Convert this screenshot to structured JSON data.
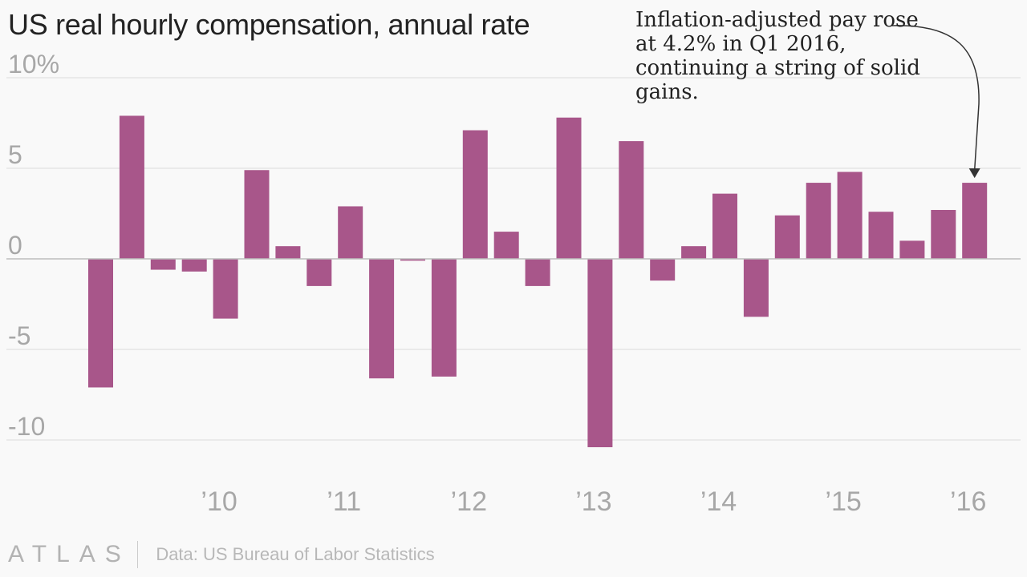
{
  "title": "US real hourly compensation, annual rate",
  "annotation": "Inflation-adjusted pay rose at 4.2% in Q1 2016, continuing a string of solid gains.",
  "footer": {
    "logo": "ATLAS",
    "source": "Data: US Bureau of Labor Statistics"
  },
  "colors": {
    "bar": "#a8568a",
    "grid": "#e2e2e2",
    "zero": "#bdbdbd",
    "tick": "#a7a7a7"
  },
  "chart_data": {
    "type": "bar",
    "title": "US real hourly compensation, annual rate",
    "ylim": [
      -10.5,
      10
    ],
    "yticks": [
      10,
      5,
      0,
      -5,
      -10
    ],
    "ytick_labels": [
      "10%",
      "5",
      "0",
      "-5",
      "-10"
    ],
    "grid": true,
    "categories": [
      "Q1 2009",
      "Q2 2009",
      "Q3 2009",
      "Q4 2009",
      "Q1 2010",
      "Q2 2010",
      "Q3 2010",
      "Q4 2010",
      "Q1 2011",
      "Q2 2011",
      "Q3 2011",
      "Q4 2011",
      "Q1 2012",
      "Q2 2012",
      "Q3 2012",
      "Q4 2012",
      "Q1 2013",
      "Q2 2013",
      "Q3 2013",
      "Q4 2013",
      "Q1 2014",
      "Q2 2014",
      "Q3 2014",
      "Q4 2014",
      "Q1 2015",
      "Q2 2015",
      "Q3 2015",
      "Q4 2015",
      "Q1 2016"
    ],
    "values": [
      -7.1,
      7.9,
      -0.6,
      -0.7,
      -3.3,
      4.9,
      0.7,
      -1.5,
      2.9,
      -6.6,
      -0.1,
      -6.5,
      7.1,
      1.5,
      -1.5,
      7.8,
      -10.4,
      6.5,
      -1.2,
      0.7,
      3.6,
      -3.2,
      2.4,
      4.2,
      4.8,
      2.6,
      1.0,
      2.7,
      4.2
    ],
    "xticks": [
      {
        "label": "’10",
        "at": "Q1 2010"
      },
      {
        "label": "’11",
        "at": "Q1 2011"
      },
      {
        "label": "’12",
        "at": "Q1 2012"
      },
      {
        "label": "’13",
        "at": "Q1 2013"
      },
      {
        "label": "’14",
        "at": "Q1 2014"
      },
      {
        "label": "’15",
        "at": "Q1 2015"
      },
      {
        "label": "’16",
        "at": "Q1 2016"
      }
    ],
    "annotation_target": "Q1 2016"
  }
}
